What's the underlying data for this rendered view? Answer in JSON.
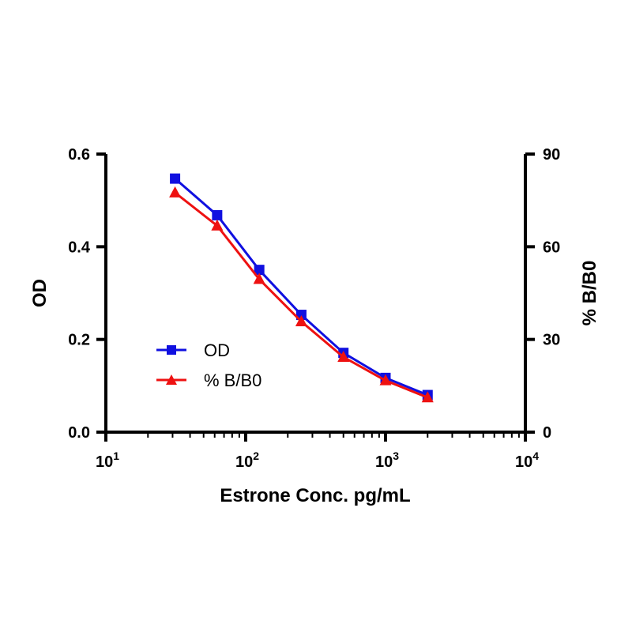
{
  "chart_data": {
    "type": "line",
    "xlabel": "Estrone Conc. pg/mL",
    "ylabel": "OD",
    "y2label": "% B/B0",
    "x_scale": "log",
    "xlim": [
      10,
      10000
    ],
    "ylim": [
      0,
      0.6
    ],
    "y2lim": [
      0,
      90
    ],
    "x_ticks": [
      {
        "base": "10",
        "exp": "1"
      },
      {
        "base": "10",
        "exp": "2"
      },
      {
        "base": "10",
        "exp": "3"
      },
      {
        "base": "10",
        "exp": "4"
      }
    ],
    "y_ticks": [
      "0.0",
      "0.2",
      "0.4",
      "0.6"
    ],
    "y2_ticks": [
      "0",
      "30",
      "60",
      "90"
    ],
    "legend_position": "left",
    "grid": false,
    "x": [
      31.25,
      62.5,
      125,
      250,
      500,
      1000,
      2000
    ],
    "series": [
      {
        "name": "OD",
        "axis": "left",
        "color": "#1010e0",
        "marker": "square",
        "values": [
          0.547,
          0.468,
          0.35,
          0.253,
          0.171,
          0.117,
          0.08
        ]
      },
      {
        "name": "% B/B0",
        "axis": "right",
        "color": "#ee1111",
        "marker": "triangle",
        "values": [
          77.5,
          66.8,
          49.5,
          35.8,
          24.3,
          16.7,
          11.2
        ]
      }
    ]
  }
}
